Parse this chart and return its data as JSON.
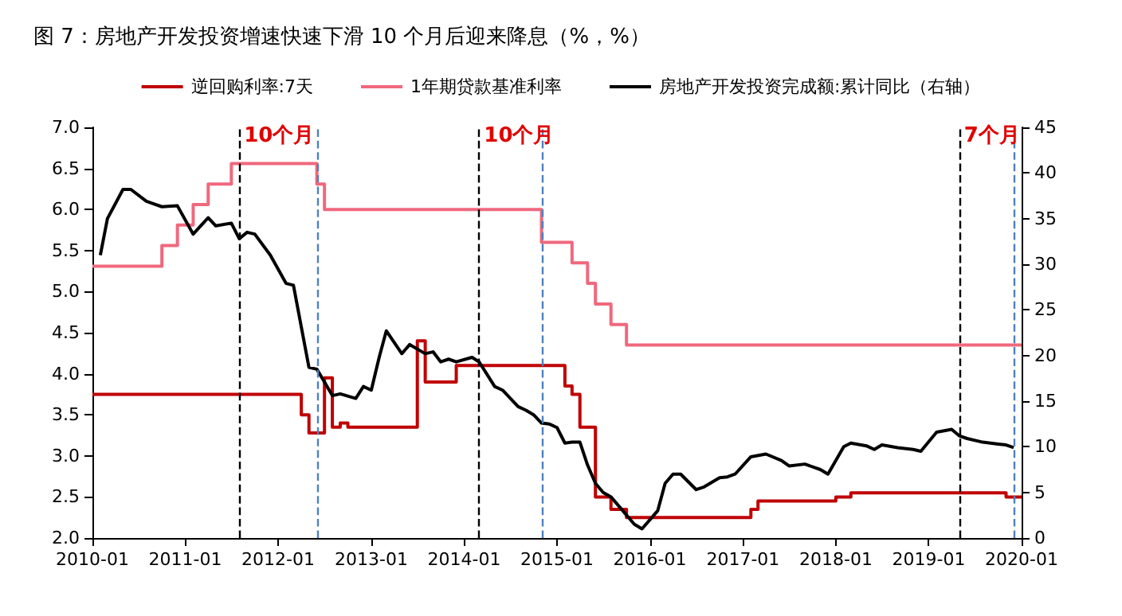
{
  "chart_data": {
    "type": "step",
    "title": "图 7：房地产开发投资增速快速下滑 10 个月后迎来降息（%，%）",
    "xlim": [
      "2010-01",
      "2020-01"
    ],
    "xticks": [
      "2010-01",
      "2011-01",
      "2012-01",
      "2013-01",
      "2014-01",
      "2015-01",
      "2016-01",
      "2017-01",
      "2018-01",
      "2019-01",
      "2020-01"
    ],
    "ylim": [
      2,
      7
    ],
    "yticks": [
      {
        "value": 2,
        "label": "2.0"
      },
      {
        "value": 2.5,
        "label": "2.5"
      },
      {
        "value": 3,
        "label": "3.0"
      },
      {
        "value": 3.5,
        "label": "3.5"
      },
      {
        "value": 4,
        "label": "4.0"
      },
      {
        "value": 4.5,
        "label": "4.5"
      },
      {
        "value": 5,
        "label": "5.0"
      },
      {
        "value": 5.5,
        "label": "5.5"
      },
      {
        "value": 6,
        "label": "6.0"
      },
      {
        "value": 6.5,
        "label": "6.5"
      },
      {
        "value": 7,
        "label": "7.0"
      }
    ],
    "y2lim": [
      0,
      45
    ],
    "y2ticks": [
      0,
      5,
      10,
      15,
      20,
      25,
      30,
      35,
      40,
      45
    ],
    "grid": false,
    "legend": "top",
    "marker": "none",
    "line_style": "solid",
    "series": [
      {
        "name": "逆回购利率:7天",
        "color": "#c00000",
        "x": [
          "2010-01",
          "2012-04",
          "2012-05",
          "2012-07",
          "2012-08",
          "2012-09",
          "2012-10",
          "2013-07",
          "2013-08",
          "2013-12",
          "2015-02",
          "2015-03",
          "2015-04",
          "2015-06",
          "2015-08",
          "2015-10",
          "2017-02",
          "2017-03",
          "2018-01",
          "2018-03",
          "2019-11",
          "2020-01"
        ],
        "values": [
          3.75,
          3.5,
          3.28,
          3.95,
          3.35,
          3.4,
          3.35,
          4.4,
          3.9,
          4.1,
          3.85,
          3.75,
          3.35,
          2.5,
          2.35,
          2.25,
          2.35,
          2.45,
          2.5,
          2.55,
          2.5,
          2.5
        ]
      },
      {
        "name": "1年期贷款基准利率",
        "color": "#f0687d",
        "x": [
          "2010-01",
          "2010-10",
          "2010-12",
          "2011-02",
          "2011-04",
          "2011-07",
          "2012-06",
          "2012-07",
          "2014-11",
          "2015-03",
          "2015-05",
          "2015-06",
          "2015-08",
          "2015-10",
          "2020-01"
        ],
        "values": [
          5.31,
          5.56,
          5.81,
          6.06,
          6.31,
          6.56,
          6.31,
          6,
          5.6,
          5.35,
          5.1,
          4.85,
          4.6,
          4.35,
          4.35
        ]
      },
      {
        "name": "房地产开发投资完成额:累计同比（右轴）",
        "type": "line",
        "axis": "y2",
        "color": "#000000",
        "x": [
          "2010-02",
          "2010-03",
          "2010-05",
          "2010-06",
          "2010-08",
          "2010-10",
          "2010-12",
          "2011-02",
          "2011-04",
          "2011-05",
          "2011-07",
          "2011-08",
          "2011-09",
          "2011-10",
          "2011-12",
          "2012-02",
          "2012-03",
          "2012-05",
          "2012-06",
          "2012-07",
          "2012-08",
          "2012-09",
          "2012-11",
          "2012-12",
          "2013-01",
          "2013-02",
          "2013-03",
          "2013-05",
          "2013-06",
          "2013-08",
          "2013-09",
          "2013-10",
          "2013-11",
          "2013-12",
          "2014-02",
          "2014-03",
          "2014-05",
          "2014-06",
          "2014-08",
          "2014-09",
          "2014-10",
          "2014-11",
          "2014-12",
          "2015-01",
          "2015-02",
          "2015-03",
          "2015-04",
          "2015-05",
          "2015-06",
          "2015-07",
          "2015-08",
          "2015-09",
          "2015-10",
          "2015-11",
          "2015-12",
          "2016-02",
          "2016-03",
          "2016-04",
          "2016-05",
          "2016-07",
          "2016-08",
          "2016-10",
          "2016-11",
          "2016-12",
          "2017-02",
          "2017-04",
          "2017-06",
          "2017-07",
          "2017-09",
          "2017-11",
          "2017-12",
          "2018-02",
          "2018-03",
          "2018-05",
          "2018-06",
          "2018-07",
          "2018-09",
          "2018-11",
          "2018-12",
          "2019-02",
          "2019-04",
          "2019-05",
          "2019-06",
          "2019-08",
          "2019-10",
          "2019-11",
          "2019-12"
        ],
        "values": [
          31,
          35,
          38.2,
          38.2,
          36.9,
          36.3,
          36.4,
          33.3,
          35.1,
          34.2,
          34.5,
          32.8,
          33.5,
          33.3,
          31,
          27.9,
          27.7,
          18.7,
          18.5,
          17.1,
          15.6,
          15.8,
          15.3,
          16.6,
          16.2,
          19.8,
          22.7,
          20.2,
          21.2,
          20.2,
          20.4,
          19.3,
          19.6,
          19.3,
          19.8,
          19.3,
          16.6,
          16.2,
          14.4,
          14,
          13.5,
          12.6,
          12.5,
          12.1,
          10.4,
          10.5,
          10.5,
          8,
          6,
          5,
          4.5,
          3.5,
          2.5,
          1.5,
          1,
          3,
          6,
          7,
          7,
          5.3,
          5.6,
          6.6,
          6.7,
          7,
          8.9,
          9.2,
          8.5,
          7.9,
          8.1,
          7.5,
          7,
          10,
          10.4,
          10.1,
          9.7,
          10.2,
          9.9,
          9.7,
          9.5,
          11.6,
          11.9,
          11.2,
          10.9,
          10.5,
          10.3,
          10.2,
          9.9
        ]
      }
    ],
    "ref_lines": [
      {
        "axis": "x",
        "value": "2011-08",
        "label": "10个月",
        "color": "#000000",
        "line_style": "dashed"
      },
      {
        "axis": "x",
        "value": "2012-06",
        "color": "#4f81bd",
        "line_style": "dashed"
      },
      {
        "axis": "x",
        "value": "2014-03",
        "label": "10个月",
        "color": "#000000",
        "line_style": "dashed"
      },
      {
        "axis": "x",
        "value": "2014-11",
        "color": "#4f81bd",
        "line_style": "dashed"
      },
      {
        "axis": "x",
        "value": "2019-05",
        "label": "7个月",
        "color": "#000000",
        "line_style": "dashed"
      },
      {
        "axis": "x",
        "value": "2019-12",
        "color": "#4f81bd",
        "line_style": "dashed"
      }
    ]
  }
}
